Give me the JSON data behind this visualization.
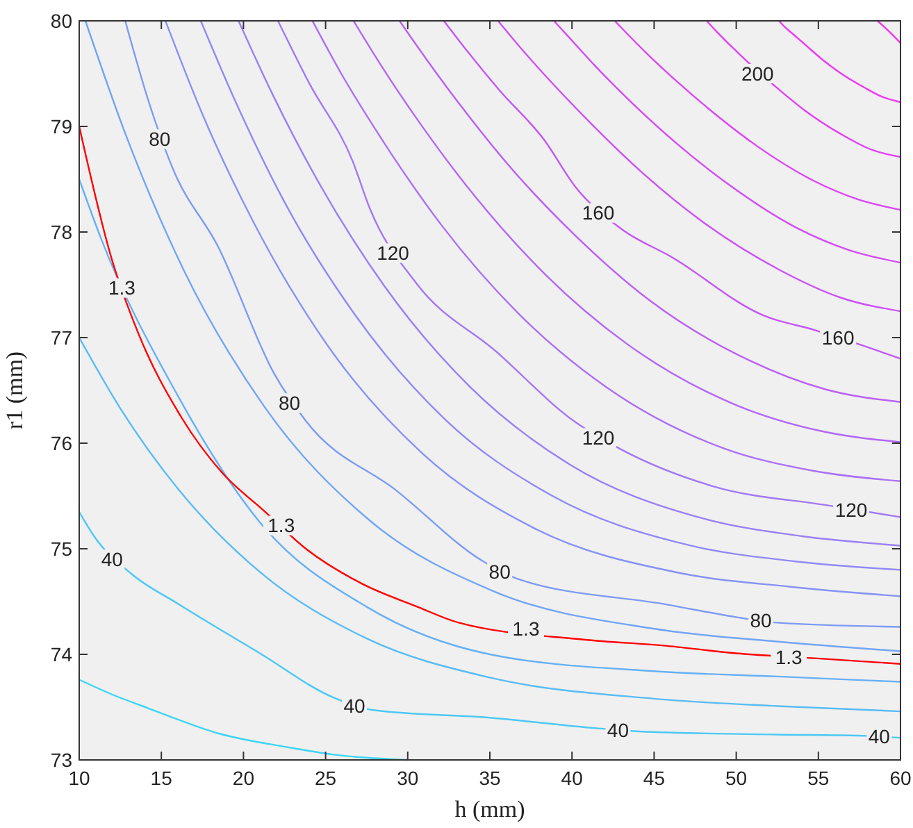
{
  "chart_data": {
    "type": "line",
    "xlabel": "h (mm)",
    "ylabel": "r1 (mm)",
    "xlim": [
      10,
      60
    ],
    "ylim": [
      73,
      80
    ],
    "xticks": [
      10,
      15,
      20,
      25,
      30,
      35,
      40,
      45,
      50,
      55,
      60
    ],
    "yticks": [
      73,
      74,
      75,
      76,
      77,
      78,
      79,
      80
    ],
    "grid": false,
    "marker": "none",
    "line_style": "solid",
    "series": [
      {
        "color": "#3dd5f5",
        "x": [
          10,
          12,
          14.2,
          18.5,
          22.7,
          25.5,
          30
        ],
        "values": [
          73.76,
          73.62,
          73.49,
          73.25,
          73.12,
          73.05,
          73.0
        ]
      },
      {
        "color": "#4cc8f5",
        "x": [
          10,
          10.9,
          13.2,
          16,
          21,
          25.5,
          28,
          35,
          41.5,
          44.1,
          52.5,
          57.4,
          60
        ],
        "values": [
          75.35,
          75.12,
          74.76,
          74.48,
          74.01,
          73.59,
          73.47,
          73.4,
          73.3,
          73.27,
          73.24,
          73.23,
          73.21
        ]
      },
      {
        "color": "#59bcf5",
        "x": [
          10,
          12.5,
          16,
          21,
          27.5,
          35,
          45,
          52.5,
          60
        ],
        "values": [
          77.0,
          76.33,
          75.57,
          74.78,
          74.15,
          73.78,
          73.58,
          73.51,
          73.46
        ]
      },
      {
        "color": "#66b0f5",
        "x": [
          10,
          11.3,
          16,
          21,
          27.5,
          35,
          45,
          52.5,
          60
        ],
        "values": [
          78.5,
          77.95,
          76.45,
          75.25,
          74.45,
          74.0,
          73.84,
          73.79,
          73.74
        ]
      },
      {
        "color": "#ff0000",
        "x": [
          10,
          11.95,
          13.6,
          16.2,
          18.7,
          21.25,
          23.8,
          27.2,
          30.6,
          33.1,
          40.7,
          45.8,
          50,
          55.1,
          60
        ],
        "values": [
          79.0,
          77.76,
          77.04,
          76.25,
          75.72,
          75.36,
          75.0,
          74.67,
          74.45,
          74.3,
          74.14,
          74.08,
          74.01,
          73.96,
          73.91
        ]
      },
      {
        "color": "#72a5f5",
        "x": [
          10.38,
          12.86,
          16.33,
          21.3,
          27.75,
          35.19,
          45.11,
          52.56,
          60
        ],
        "values": [
          80,
          78.91,
          77.65,
          76.34,
          75.26,
          74.6,
          74.24,
          74.12,
          74.03
        ]
      },
      {
        "color": "#7d9bf5",
        "x": [
          12.8,
          14.2,
          15.7,
          18.46,
          21.9,
          23.8,
          29.32,
          34.6,
          36.6,
          45.84,
          50.5,
          52.5,
          60
        ],
        "values": [
          80,
          79.25,
          78.6,
          77.86,
          76.65,
          76.21,
          75.55,
          74.88,
          74.72,
          74.47,
          74.34,
          74.3,
          74.26
        ]
      },
      {
        "color": "#8792f5",
        "x": [
          15.25,
          17.49,
          20.62,
          25.1,
          30.91,
          37.63,
          46.58,
          53.29,
          60
        ],
        "values": [
          80,
          79.12,
          78.09,
          76.93,
          75.9,
          75.2,
          74.77,
          74.64,
          74.55
        ]
      },
      {
        "color": "#9189f5",
        "x": [
          17.4,
          19.53,
          22.51,
          26.77,
          32.31,
          38.7,
          47.22,
          53.61,
          60
        ],
        "values": [
          80,
          79.23,
          78.28,
          77.22,
          76.22,
          75.51,
          75.03,
          74.88,
          74.8
        ]
      },
      {
        "color": "#9a80f5",
        "x": [
          19.7,
          21.72,
          24.54,
          28.57,
          33.81,
          39.85,
          47.91,
          53.96,
          60
        ],
        "values": [
          80,
          79.32,
          78.48,
          77.49,
          76.53,
          75.8,
          75.29,
          75.12,
          75.03
        ]
      },
      {
        "color": "#a278f5",
        "x": [
          22.1,
          24.0,
          26.65,
          27.7,
          30.5,
          35.37,
          40.2,
          43.0,
          48.63,
          55.6,
          60
        ],
        "values": [
          80,
          79.41,
          78.67,
          78.22,
          77.52,
          76.87,
          76.2,
          75.94,
          75.59,
          75.41,
          75.3
        ]
      },
      {
        "color": "#ab70f5",
        "x": [
          24.2,
          25.99,
          28.5,
          32.08,
          36.73,
          42.1,
          49.26,
          54.63,
          60
        ],
        "values": [
          80,
          79.49,
          78.86,
          78.06,
          77.23,
          76.53,
          75.95,
          75.74,
          75.64
        ]
      },
      {
        "color": "#b368f5",
        "x": [
          26.7,
          28.37,
          30.7,
          34.03,
          38.36,
          43.35,
          50.01,
          55.01,
          60
        ],
        "values": [
          80,
          79.58,
          79.04,
          78.35,
          77.6,
          76.94,
          76.36,
          76.12,
          76.01
        ]
      },
      {
        "color": "#bb60f5",
        "x": [
          29.5,
          31.03,
          33.16,
          36.21,
          40.18,
          44.75,
          50.85,
          55.43,
          60
        ],
        "values": [
          80,
          79.66,
          79.21,
          78.62,
          77.97,
          77.35,
          76.78,
          76.51,
          76.39
        ]
      },
      {
        "color": "#c458f5",
        "x": [
          32.2,
          33.59,
          35.54,
          38.32,
          40.2,
          43.0,
          46.1,
          51.66,
          54.8,
          57.6,
          60
        ],
        "values": [
          80,
          79.72,
          79.35,
          78.87,
          78.43,
          78.03,
          77.76,
          77.21,
          77.07,
          76.93,
          76.8
        ]
      },
      {
        "color": "#cc52f5",
        "x": [
          35.5,
          36.73,
          38.44,
          40.89,
          44.08,
          47.75,
          52.65,
          56.33,
          60
        ],
        "values": [
          80,
          79.77,
          79.47,
          79.07,
          78.59,
          78.12,
          77.64,
          77.38,
          77.25
        ]
      },
      {
        "color": "#d54cf5",
        "x": [
          38.9,
          39.96,
          41.43,
          43.54,
          46.29,
          49.45,
          53.67,
          56.84,
          60
        ],
        "values": [
          80,
          79.82,
          79.57,
          79.24,
          78.85,
          78.46,
          78.04,
          77.83,
          77.71
        ]
      },
      {
        "color": "#dd46f5",
        "x": [
          42.6,
          43.47,
          44.69,
          46.43,
          48.69,
          51.3,
          54.78,
          57.39,
          60
        ],
        "values": [
          80,
          79.86,
          79.67,
          79.42,
          79.12,
          78.81,
          78.48,
          78.31,
          78.21
        ]
      },
      {
        "color": "#e540f5",
        "x": [
          48.2,
          48.79,
          49.62,
          52.9,
          54.1,
          56.46,
          58.23,
          60
        ],
        "values": [
          80,
          79.9,
          79.77,
          79.31,
          79.16,
          78.92,
          78.78,
          78.71
        ]
      },
      {
        "color": "#ee3af5",
        "x": [
          52.6,
          52.97,
          53.49,
          54.23,
          55.19,
          56.3,
          57.78,
          58.89,
          60
        ],
        "values": [
          80,
          79.94,
          79.87,
          79.77,
          79.64,
          79.51,
          79.37,
          79.28,
          79.23
        ]
      },
      {
        "color": "#f535f5",
        "x": [
          58.6,
          59.3,
          60
        ],
        "values": [
          80,
          79.9,
          79.79
        ]
      }
    ],
    "annotations": [
      {
        "text": "80",
        "x": 14.9,
        "y": 78.88
      },
      {
        "text": "80",
        "x": 22.8,
        "y": 76.38
      },
      {
        "text": "80",
        "x": 35.6,
        "y": 74.78
      },
      {
        "text": "80",
        "x": 51.5,
        "y": 74.32
      },
      {
        "text": "120",
        "x": 29.1,
        "y": 77.8
      },
      {
        "text": "120",
        "x": 41.6,
        "y": 76.05
      },
      {
        "text": "120",
        "x": 57,
        "y": 75.37
      },
      {
        "text": "160",
        "x": 41.6,
        "y": 78.18
      },
      {
        "text": "160",
        "x": 56.2,
        "y": 77.0
      },
      {
        "text": "200",
        "x": 51.3,
        "y": 79.5
      },
      {
        "text": "40",
        "x": 12,
        "y": 74.9
      },
      {
        "text": "40",
        "x": 26.75,
        "y": 73.51
      },
      {
        "text": "40",
        "x": 42.8,
        "y": 73.28
      },
      {
        "text": "40",
        "x": 58.7,
        "y": 73.22
      },
      {
        "text": "1.3",
        "x": 12.6,
        "y": 77.47
      },
      {
        "text": "1.3",
        "x": 22.3,
        "y": 75.22
      },
      {
        "text": "1.3",
        "x": 37.2,
        "y": 74.24
      },
      {
        "text": "1.3",
        "x": 53.2,
        "y": 73.97
      }
    ]
  }
}
